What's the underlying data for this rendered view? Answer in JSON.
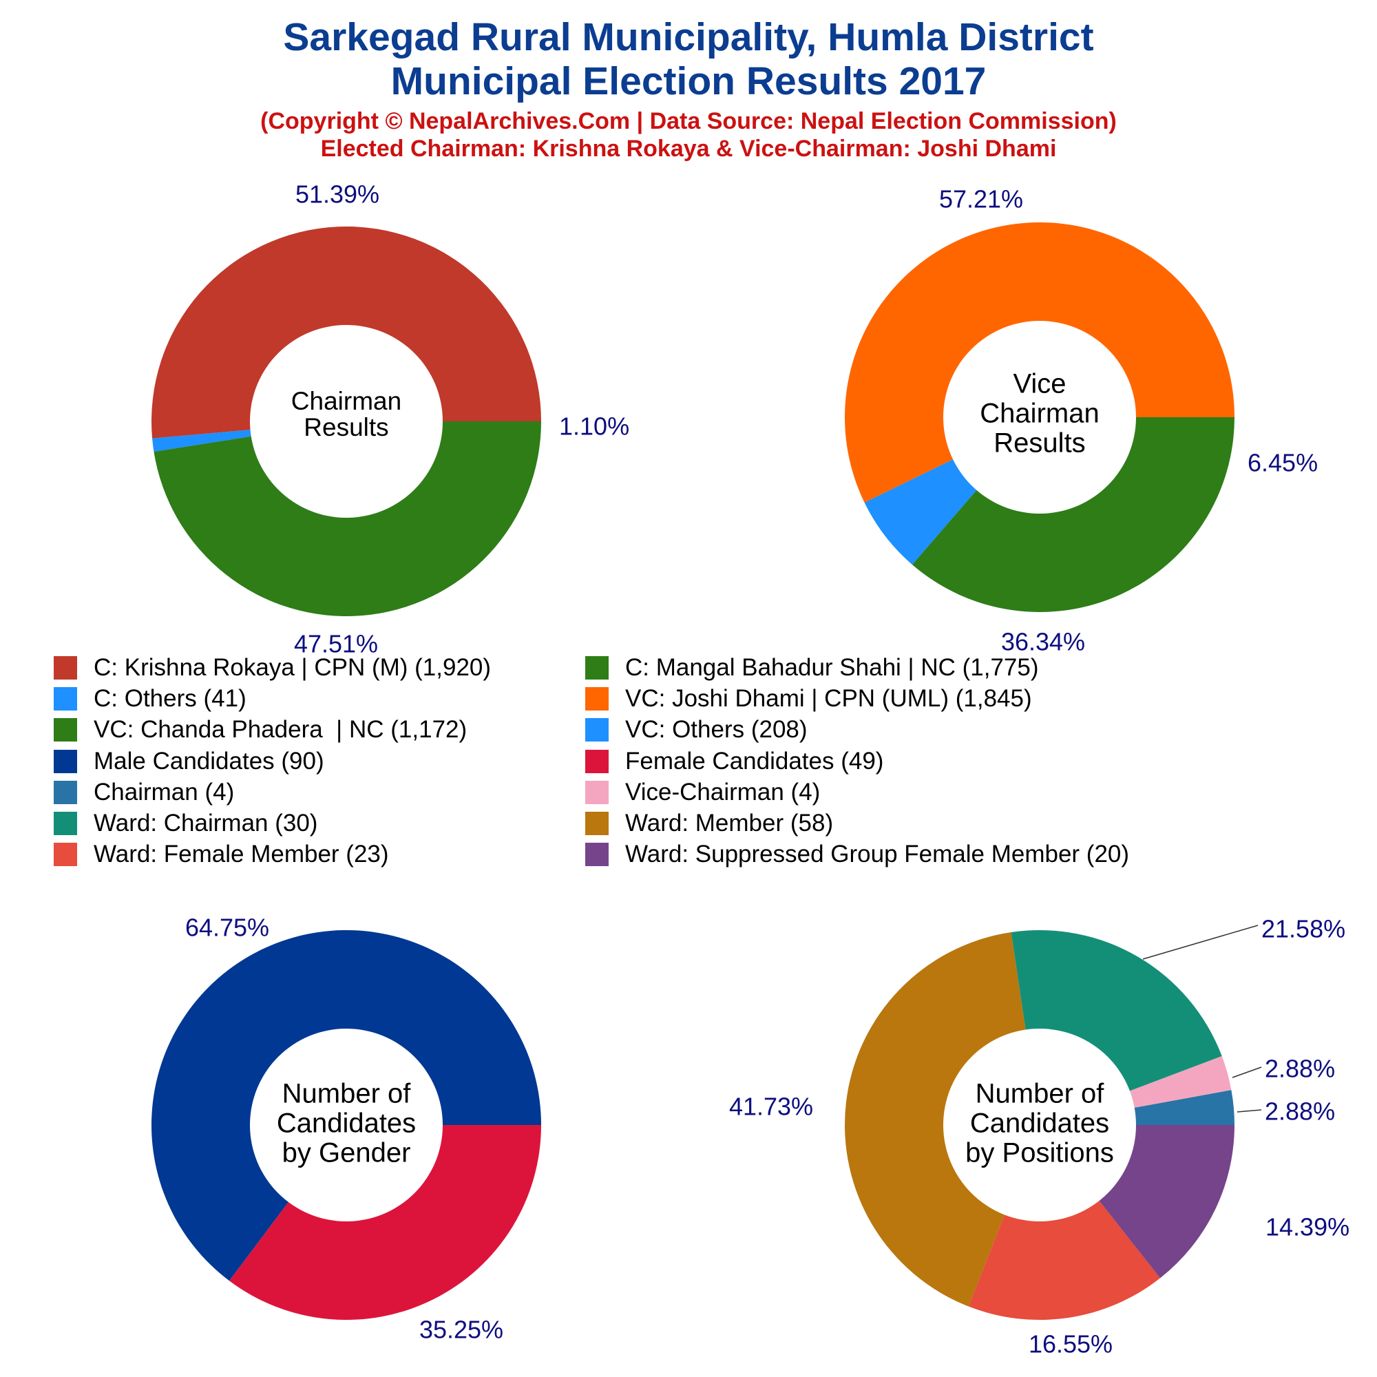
{
  "title": [
    "Sarkegad Rural Municipality, Humla District",
    "Municipal Election Results 2017"
  ],
  "subtitle": [
    "(Copyright © NepalArchives.Com | Data Source: Nepal Election Commission)",
    "Elected Chairman: Krishna Rokaya & Vice-Chairman: Joshi Dhami"
  ],
  "colors": {
    "title": "#0b3d91",
    "subtitle": "#cc1111",
    "percent_label": "#0d0d80"
  },
  "legend": [
    {
      "label": "C: Krishna Rokaya | CPN (M) (1,920)",
      "color": "#c0392b"
    },
    {
      "label": "C: Mangal Bahadur Shahi | NC (1,775)",
      "color": "#2e7d17"
    },
    {
      "label": "C: Others (41)",
      "color": "#1e90ff"
    },
    {
      "label": "VC: Joshi Dhami | CPN (UML) (1,845)",
      "color": "#ff6600"
    },
    {
      "label": "VC: Chanda Phadera  | NC (1,172)",
      "color": "#2e7d17"
    },
    {
      "label": "VC: Others (208)",
      "color": "#1e90ff"
    },
    {
      "label": "Male Candidates (90)",
      "color": "#003893"
    },
    {
      "label": "Female Candidates (49)",
      "color": "#dc143c"
    },
    {
      "label": "Chairman (4)",
      "color": "#2874a6"
    },
    {
      "label": "Vice-Chairman (4)",
      "color": "#f4a6c0"
    },
    {
      "label": "Ward: Chairman (30)",
      "color": "#148f77"
    },
    {
      "label": "Ward: Member (58)",
      "color": "#b9770e"
    },
    {
      "label": "Ward: Female Member (23)",
      "color": "#e74c3c"
    },
    {
      "label": "Ward: Suppressed Group Female Member (20)",
      "color": "#76448a"
    }
  ],
  "chart_data": [
    {
      "type": "pie",
      "center_label": [
        "Chairman",
        "Results"
      ],
      "slices": [
        {
          "name": "C: Krishna Rokaya | CPN (M)",
          "value": 1920,
          "percent_label": "51.39%",
          "color": "#c0392b"
        },
        {
          "name": "C: Others",
          "value": 41,
          "percent_label": "1.10%",
          "color": "#1e90ff"
        },
        {
          "name": "C: Mangal Bahadur Shahi | NC",
          "value": 1775,
          "percent_label": "47.51%",
          "color": "#2e7d17"
        }
      ]
    },
    {
      "type": "pie",
      "center_label": [
        "Vice",
        "Chairman",
        "Results"
      ],
      "slices": [
        {
          "name": "VC: Joshi Dhami | CPN (UML)",
          "value": 1845,
          "percent_label": "57.21%",
          "color": "#ff6600"
        },
        {
          "name": "VC: Others",
          "value": 208,
          "percent_label": "6.45%",
          "color": "#1e90ff"
        },
        {
          "name": "VC: Chanda Phadera | NC",
          "value": 1172,
          "percent_label": "36.34%",
          "color": "#2e7d17"
        }
      ]
    },
    {
      "type": "pie",
      "center_label": [
        "Number of",
        "Candidates",
        "by Gender"
      ],
      "slices": [
        {
          "name": "Male Candidates",
          "value": 90,
          "percent_label": "64.75%",
          "color": "#003893"
        },
        {
          "name": "Female Candidates",
          "value": 49,
          "percent_label": "35.25%",
          "color": "#dc143c"
        }
      ]
    },
    {
      "type": "pie",
      "center_label": [
        "Number of",
        "Candidates",
        "by Positions"
      ],
      "slices": [
        {
          "name": "Chairman",
          "value": 4,
          "percent_label": "2.88%",
          "color": "#2874a6"
        },
        {
          "name": "Vice-Chairman",
          "value": 4,
          "percent_label": "2.88%",
          "color": "#f4a6c0"
        },
        {
          "name": "Ward: Chairman",
          "value": 30,
          "percent_label": "21.58%",
          "color": "#148f77"
        },
        {
          "name": "Ward: Member",
          "value": 58,
          "percent_label": "41.73%",
          "color": "#b9770e"
        },
        {
          "name": "Ward: Female Member",
          "value": 23,
          "percent_label": "16.55%",
          "color": "#e74c3c"
        },
        {
          "name": "Ward: Suppressed Group Female Member",
          "value": 20,
          "percent_label": "14.39%",
          "color": "#76448a"
        }
      ]
    }
  ]
}
